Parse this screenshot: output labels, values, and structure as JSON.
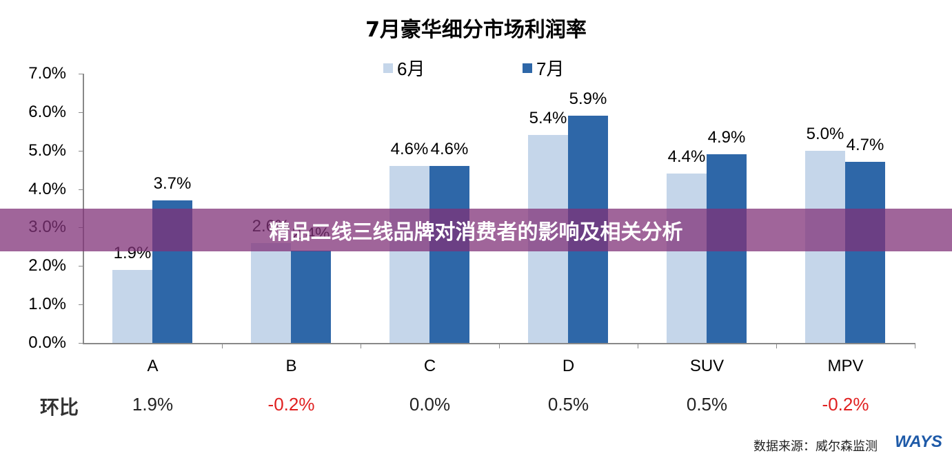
{
  "title": "7月豪华细分市场利润率",
  "legend": [
    {
      "label": "6月",
      "color": "#c5d6ea"
    },
    {
      "label": "7月",
      "color": "#2e67a8"
    }
  ],
  "y_ticks": [
    "7.0%",
    "6.0%",
    "5.0%",
    "4.0%",
    "3.0%",
    "2.0%",
    "1.0%",
    "0.0%"
  ],
  "mom_label": "环比",
  "mom": [
    {
      "value": "1.9%",
      "color": "#222222"
    },
    {
      "value": "-0.2%",
      "color": "#e02020"
    },
    {
      "value": "0.0%",
      "color": "#222222"
    },
    {
      "value": "0.5%",
      "color": "#222222"
    },
    {
      "value": "0.5%",
      "color": "#222222"
    },
    {
      "value": "-0.2%",
      "color": "#e02020"
    }
  ],
  "banner": "精品二线三线品牌对消费者的影响及相关分析",
  "source": "数据来源：威尔森监测",
  "logo": "WAYS",
  "chart_data": {
    "type": "bar",
    "title": "7月豪华细分市场利润率",
    "categories": [
      "A",
      "B",
      "C",
      "D",
      "SUV",
      "MPV"
    ],
    "series": [
      {
        "name": "6月",
        "values": [
          1.9,
          2.6,
          4.6,
          5.4,
          4.4,
          5.0
        ],
        "labels": [
          "1.9%",
          "2.6%",
          "4.6%",
          "5.4%",
          "4.4%",
          "5.0%"
        ]
      },
      {
        "name": "7月",
        "values": [
          3.7,
          2.4,
          4.6,
          5.9,
          4.9,
          4.7
        ],
        "labels": [
          "3.7%",
          "2.4%",
          "4.6%",
          "5.9%",
          "4.9%",
          "4.7%"
        ]
      }
    ],
    "xlabel": "",
    "ylabel": "",
    "ylim": [
      0,
      7
    ],
    "y_tick_step": 1,
    "y_format": "percent",
    "grid": false,
    "legend_position": "top",
    "extra_row": {
      "label": "环比",
      "values": [
        "1.9%",
        "-0.2%",
        "0.0%",
        "0.5%",
        "0.5%",
        "-0.2%"
      ]
    }
  }
}
